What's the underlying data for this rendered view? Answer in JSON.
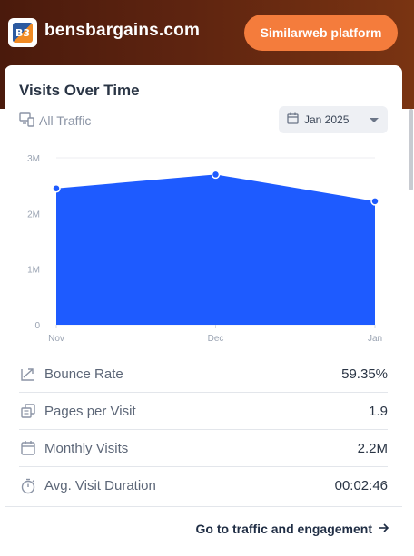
{
  "site": {
    "name": "bensbargains.com",
    "logo_text": "B3"
  },
  "header": {
    "platform_button": "Similarweb platform"
  },
  "card": {
    "title": "Visits Over Time",
    "traffic_filter": "All Traffic",
    "date_select": "Jan 2025"
  },
  "chart_data": {
    "type": "area",
    "categories": [
      "Nov",
      "Dec",
      "Jan"
    ],
    "values": [
      2450000,
      2700000,
      2220000
    ],
    "ylim": [
      0,
      3000000
    ],
    "y_ticks": [
      "0",
      "1M",
      "2M",
      "3M"
    ],
    "grid": true,
    "color": "#1e5bff"
  },
  "metrics": [
    {
      "icon": "bounce-rate-icon",
      "label": "Bounce Rate",
      "value": "59.35%"
    },
    {
      "icon": "pages-per-visit-icon",
      "label": "Pages per Visit",
      "value": "1.9"
    },
    {
      "icon": "calendar-icon",
      "label": "Monthly Visits",
      "value": "2.2M"
    },
    {
      "icon": "stopwatch-icon",
      "label": "Avg. Visit Duration",
      "value": "00:02:46"
    }
  ],
  "footer": {
    "link": "Go to traffic and engagement"
  },
  "colors": {
    "accent": "#f47c3c",
    "chart_fill": "#1e5bff"
  }
}
